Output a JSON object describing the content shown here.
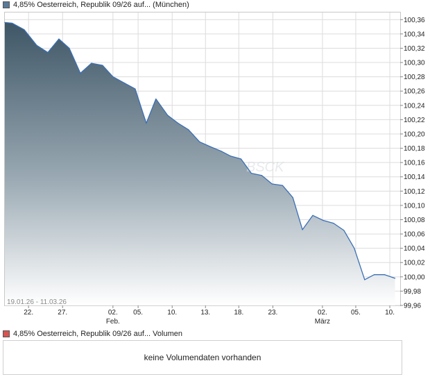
{
  "legend_price": {
    "label": "4,85% Oesterreich, Republik 09/26 auf... (München)",
    "color": "#5b7a99"
  },
  "legend_volume": {
    "label": "4,85% Oesterreich, Republik 09/26 auf... Volumen",
    "color": "#d9534f"
  },
  "date_range": "19.01.26 - 11.03.26",
  "volume_message": "keine Volumendaten vorhanden",
  "watermark": "BSCK",
  "chart_data": {
    "type": "area",
    "title": "4,85% Oesterreich, Republik 09/26 auf... (München)",
    "xlabel": "",
    "ylabel": "",
    "ylim": [
      99.96,
      100.37
    ],
    "grid": true,
    "legend": "top-left",
    "y_ticks": [
      "100,36",
      "100,34",
      "100,32",
      "100,30",
      "100,28",
      "100,26",
      "100,24",
      "100,22",
      "100,20",
      "100,18",
      "100,16",
      "100,14",
      "100,12",
      "100,10",
      "100,08",
      "100,06",
      "100,04",
      "100,02",
      "100,00",
      "99,98",
      "99,96"
    ],
    "x_ticks": [
      {
        "t": 3.2,
        "label": "22."
      },
      {
        "t": 7.8,
        "label": "27."
      },
      {
        "t": 14.6,
        "label": "02.",
        "sub": "Feb."
      },
      {
        "t": 18.0,
        "label": "05."
      },
      {
        "t": 22.6,
        "label": "10."
      },
      {
        "t": 27.1,
        "label": "13."
      },
      {
        "t": 31.6,
        "label": "18."
      },
      {
        "t": 36.2,
        "label": "23."
      },
      {
        "t": 42.9,
        "label": "02.",
        "sub": "März"
      },
      {
        "t": 47.4,
        "label": "05."
      },
      {
        "t": 52.0,
        "label": "10."
      }
    ],
    "series": [
      {
        "color": "#3b6fb5",
        "points": [
          [
            0.0,
            100.356
          ],
          [
            1.0,
            100.355
          ],
          [
            2.6,
            100.346
          ],
          [
            4.3,
            100.324
          ],
          [
            5.8,
            100.314
          ],
          [
            7.3,
            100.333
          ],
          [
            8.7,
            100.32
          ],
          [
            10.2,
            100.285
          ],
          [
            11.7,
            100.299
          ],
          [
            13.2,
            100.296
          ],
          [
            14.6,
            100.28
          ],
          [
            16.2,
            100.271
          ],
          [
            17.6,
            100.263
          ],
          [
            19.1,
            100.215
          ],
          [
            20.4,
            100.249
          ],
          [
            22.0,
            100.226
          ],
          [
            23.4,
            100.215
          ],
          [
            24.8,
            100.206
          ],
          [
            26.3,
            100.189
          ],
          [
            27.8,
            100.182
          ],
          [
            29.2,
            100.176
          ],
          [
            30.5,
            100.169
          ],
          [
            31.9,
            100.165
          ],
          [
            33.3,
            100.145
          ],
          [
            34.7,
            100.142
          ],
          [
            36.1,
            100.13
          ],
          [
            37.5,
            100.128
          ],
          [
            38.9,
            100.111
          ],
          [
            40.2,
            100.066
          ],
          [
            41.6,
            100.086
          ],
          [
            43.0,
            100.079
          ],
          [
            44.4,
            100.075
          ],
          [
            45.8,
            100.065
          ],
          [
            47.2,
            100.04
          ],
          [
            48.6,
            99.996
          ],
          [
            49.9,
            100.003
          ],
          [
            51.3,
            100.003
          ],
          [
            52.7,
            99.998
          ]
        ]
      }
    ]
  }
}
